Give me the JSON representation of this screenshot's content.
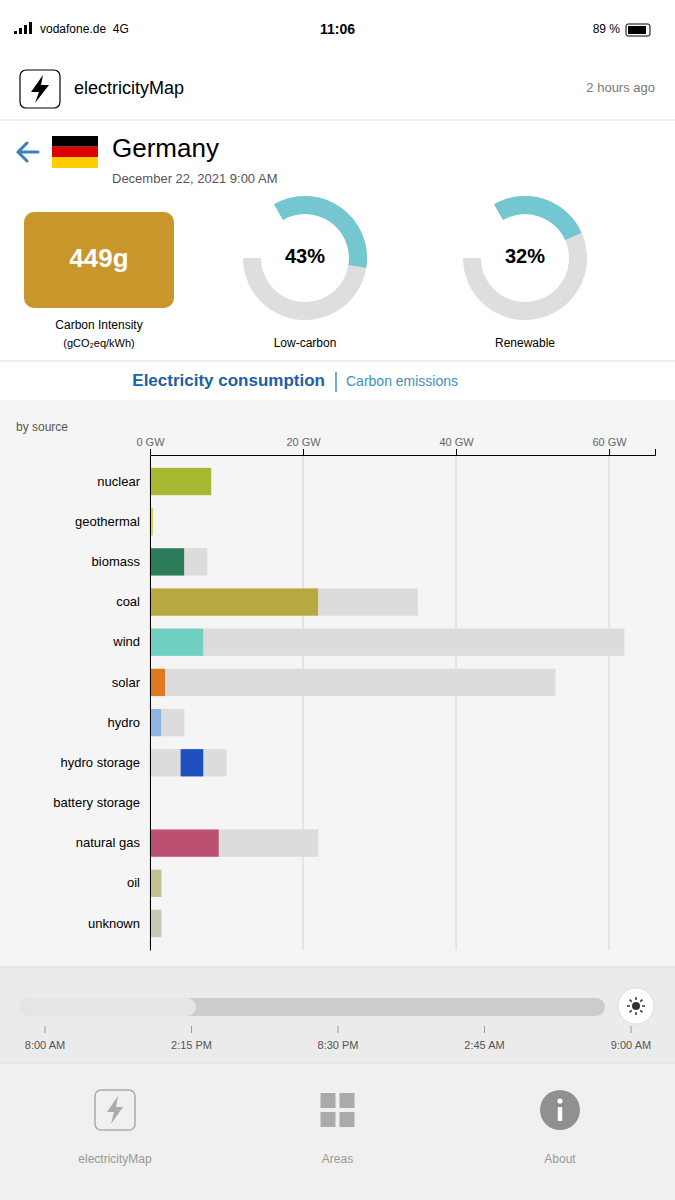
{
  "page": {
    "status_bar": {
      "carrier": "vodafone.de  4G",
      "time": "11:06",
      "battery": "89 %"
    },
    "app_header": {
      "app_name": "electricityMap",
      "time_ago": "2 hours ago"
    },
    "country": "Germany",
    "date": "December 22, 2021 9:00 AM",
    "carbon_intensity": {
      "value": 449,
      "label": "449g",
      "title": "Carbon Intensity",
      "unit": "(gCO₂eq/kWh)",
      "color": "#C8962A"
    },
    "timeline_labels": [
      "8:00 AM",
      "2:15 PM",
      "8:30 PM",
      "2:45 AM",
      "9:00 AM"
    ],
    "footer_items": [
      "electricityMap",
      "Areas",
      "About"
    ]
  },
  "chart_data": [
    {
      "type": "gauge",
      "title": "Low-carbon",
      "values": [
        43
      ],
      "value_labels": [
        "43%"
      ],
      "color": "#74C6D0",
      "ylim": [
        0,
        100
      ]
    },
    {
      "type": "gauge",
      "title": "Renewable",
      "values": [
        32
      ],
      "value_labels": [
        "32%"
      ],
      "color": "#74C6D0",
      "ylim": [
        0,
        100
      ]
    },
    {
      "type": "bar",
      "orientation": "horizontal",
      "stacked": true,
      "title": "Electricity consumption",
      "subtitle": "Carbon emissions",
      "ylabel": "by source",
      "categories": [
        "nuclear",
        "geothermal",
        "biomass",
        "coal",
        "wind",
        "solar",
        "hydro",
        "hydro storage",
        "battery storage",
        "natural gas",
        "oil",
        "unknown"
      ],
      "series": [
        {
          "color": "#DCDCDC",
          "values": [
            0,
            0,
            0,
            0,
            0,
            0,
            0,
            4,
            0,
            0,
            0,
            0
          ]
        },
        {
          "colors": [
            "#A8B830",
            "#D4D44A",
            "#2E7D5A",
            "#B8A840",
            "#70D0C0",
            "#E07820",
            "#8EB4E0",
            "#2050C0",
            "#808080",
            "#BC5070",
            "#C0C090",
            "#C8C8B8"
          ],
          "values": [
            8,
            0.4,
            4.5,
            22,
            7,
            2,
            1.5,
            3,
            0,
            9,
            1.5,
            1.5
          ]
        },
        {
          "color": "#DCDCDC",
          "values": [
            0,
            0,
            3,
            13,
            55,
            51,
            3,
            3,
            0,
            13,
            0,
            0
          ]
        }
      ],
      "xlim": [
        0,
        66
      ],
      "xticks": [
        {
          "value": 0,
          "label": "0 GW"
        },
        {
          "value": 20,
          "label": "20 GW"
        },
        {
          "value": 40,
          "label": "40 GW"
        },
        {
          "value": 60,
          "label": "60 GW"
        }
      ],
      "grid": true
    }
  ]
}
